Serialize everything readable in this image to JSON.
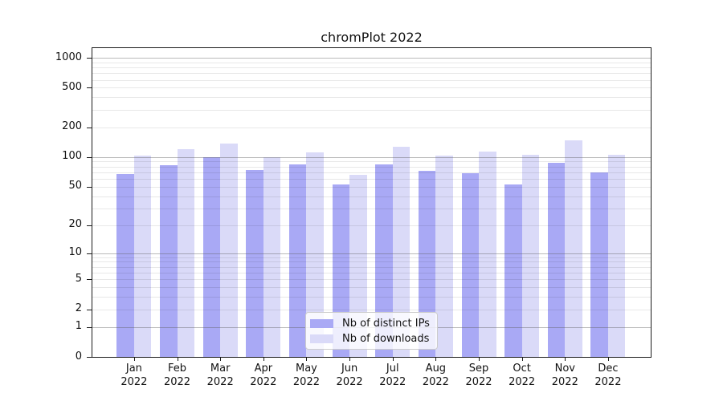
{
  "chart_data": {
    "type": "bar",
    "title": "chromPlot 2022",
    "categories": [
      "Jan",
      "Feb",
      "Mar",
      "Apr",
      "May",
      "Jun",
      "Jul",
      "Aug",
      "Sep",
      "Oct",
      "Nov",
      "Dec"
    ],
    "year_label": "2022",
    "series": [
      {
        "name": "Nb of distinct IPs",
        "color": "#a9a9f5",
        "values": [
          67,
          83,
          100,
          74,
          84,
          53,
          85,
          73,
          69,
          53,
          87,
          70
        ]
      },
      {
        "name": "Nb of downloads",
        "color": "#dadaf8",
        "values": [
          104,
          121,
          137,
          99,
          112,
          66,
          127,
          103,
          114,
          105,
          148,
          106
        ]
      }
    ],
    "y_axis": {
      "scale": "log1p",
      "ticks": [
        0,
        1,
        2,
        5,
        10,
        20,
        50,
        100,
        200,
        500,
        1000
      ],
      "tick_labels": [
        "0",
        "1",
        "2",
        "5",
        "10",
        "20",
        "50",
        "100",
        "200",
        "500",
        "1000"
      ],
      "minor_ticks": [
        3,
        4,
        6,
        7,
        8,
        9,
        30,
        40,
        60,
        70,
        80,
        90,
        300,
        400,
        600,
        700,
        800,
        900
      ],
      "ylim": [
        0,
        1260
      ],
      "decade_lines": [
        1,
        10,
        100,
        1000
      ]
    },
    "x_axis": {
      "tick_label_line1": [
        "Jan",
        "Feb",
        "Mar",
        "Apr",
        "May",
        "Jun",
        "Jul",
        "Aug",
        "Sep",
        "Oct",
        "Nov",
        "Dec"
      ],
      "tick_label_line2": "2022"
    },
    "legend": {
      "position": "lower center",
      "entries": [
        "Nb of distinct IPs",
        "Nb of downloads"
      ]
    },
    "grid": true,
    "colors": {
      "decade_grid": "#bababa",
      "minor_grid": "#e9e9e9",
      "axis": "#1a1a1a",
      "legend_border": "#cccccc",
      "background": "#ffffff"
    }
  }
}
